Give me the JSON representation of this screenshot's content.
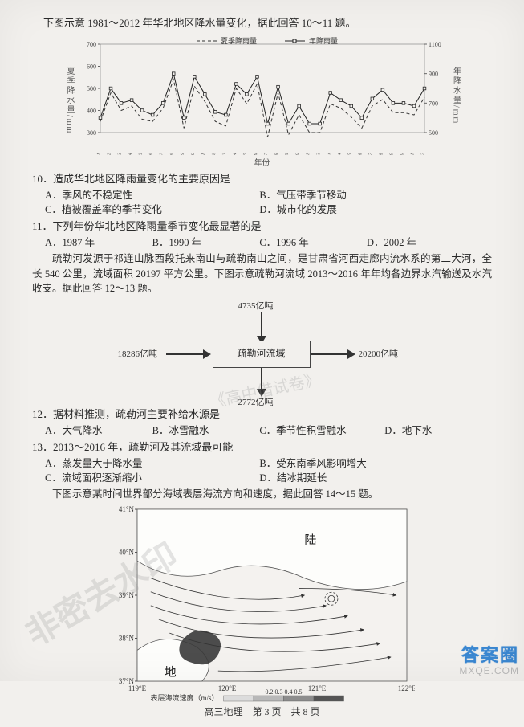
{
  "intro1": "下图示意 1981～2012 年华北地区降水量变化，据此回答 10～11 题。",
  "chart1": {
    "legend": {
      "a": "夏季降雨量",
      "b": "年降雨量"
    },
    "left_axis_label": "夏季降水量/mm",
    "right_axis_label": "年降水量/mm",
    "xlabel": "年份",
    "left_ticks": [
      "700",
      "600",
      "500",
      "400",
      "300"
    ],
    "right_ticks": [
      "1100",
      "900",
      "700",
      "500"
    ],
    "years": [
      "1981",
      "1982",
      "1983",
      "1984",
      "1985",
      "1986",
      "1987",
      "1988",
      "1989",
      "1990",
      "1991",
      "1992",
      "1993",
      "1994",
      "1995",
      "1996",
      "1997",
      "1998",
      "1999",
      "2000",
      "2001",
      "2002",
      "2003",
      "2004",
      "2005",
      "2006",
      "2007",
      "2008",
      "2009",
      "2010",
      "2011",
      "2012"
    ],
    "summer": [
      350,
      480,
      400,
      420,
      360,
      350,
      410,
      540,
      320,
      510,
      440,
      350,
      330,
      500,
      430,
      520,
      280,
      480,
      290,
      380,
      300,
      300,
      430,
      410,
      370,
      320,
      420,
      450,
      390,
      390,
      380,
      460
    ],
    "year": [
      600,
      800,
      700,
      720,
      650,
      620,
      700,
      900,
      600,
      880,
      760,
      640,
      620,
      830,
      760,
      880,
      560,
      810,
      560,
      680,
      560,
      560,
      770,
      720,
      680,
      600,
      730,
      790,
      700,
      700,
      680,
      800
    ],
    "left_min": 300,
    "left_max": 700,
    "right_min": 500,
    "right_max": 1100,
    "series_a_style": "dashed",
    "series_b_style": "solid-markers"
  },
  "q10": {
    "stem": "10．造成华北地区降雨量变化的主要原因是",
    "A": "A．季风的不稳定性",
    "B": "B．气压带季节移动",
    "C": "C．植被覆盖率的季节变化",
    "D": "D．城市化的发展"
  },
  "q11": {
    "stem": "11．下列年份华北地区降雨量季节变化最显著的是",
    "A": "A．1987 年",
    "B": "B．1990 年",
    "C": "C．1996 年",
    "D": "D．2002 年"
  },
  "para1": "疏勒河发源于祁连山脉西段托来南山与疏勒南山之间，是甘肃省河西走廊内流水系的第二大河，全长 540 公里，流域面积 20197 平方公里。下图示意疏勒河流域 2013～2016 年年均各边界水汽输送及水汽收支。据此回答 12～13 题。",
  "flow": {
    "top_in": "4735亿吨",
    "left_in": "18286亿吨",
    "right_out": "20200亿吨",
    "bottom_out": "2772亿吨",
    "box_label": "疏勒河流域"
  },
  "q12": {
    "stem": "12．据材料推测，疏勒河主要补给水源是",
    "A": "A．大气降水",
    "B": "B．冰雪融水",
    "C": "C．季节性积雪融水",
    "D": "D．地下水"
  },
  "q13": {
    "stem": "13．2013～2016 年，疏勒河及其流域最可能",
    "A": "A．蒸发量大于降水量",
    "B": "B．受东南季风影响增大",
    "C": "C．流域面积逐渐缩小",
    "D": "D．结冰期延长"
  },
  "intro2": "下图示意某时间世界部分海域表层海流方向和速度，据此回答 14～15 题。",
  "map": {
    "lat_ticks": [
      "41°N",
      "40°N",
      "39°N",
      "38°N",
      "37°N"
    ],
    "lon_ticks": [
      "119°E",
      "120°E",
      "121°E",
      "122°E"
    ],
    "land_label_top": "陆",
    "land_label_bottom": "地",
    "legend_label": "表层海流速度（m/s）",
    "legend_vals": "0.2  0.3  0.4  0.5"
  },
  "footer": "高三地理　第 3 页　共 8 页",
  "watermark_main": "非密去水印",
  "watermark_small": "《高中借试卷》",
  "corner_top": "答案圈",
  "corner_bottom": "MXQE.COM"
}
